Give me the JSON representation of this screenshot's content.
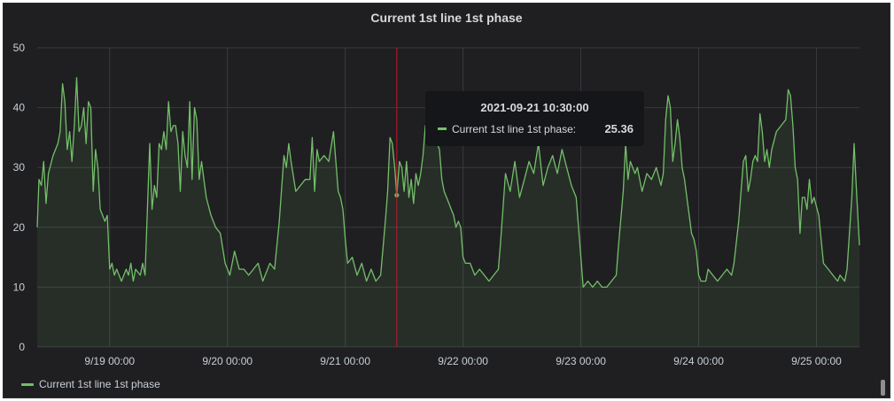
{
  "panel": {
    "title": "Current 1st line 1st phase"
  },
  "colors": {
    "background": "#1f1f21",
    "grid": "#3a3a3e",
    "series": "#73bf69",
    "crosshair": "#c4162a",
    "text": "#c7d0d9"
  },
  "tooltip": {
    "time": "2021-09-21 10:30:00",
    "label": "Current 1st line 1st phase:",
    "value": "25.36"
  },
  "legend": {
    "label": "Current 1st line 1st phase"
  },
  "chart_data": {
    "type": "area",
    "title": "Current 1st line 1st phase",
    "ylim": [
      0,
      50
    ],
    "y_ticks": [
      0,
      10,
      20,
      30,
      40,
      50
    ],
    "x_range_days": [
      18.385,
      25.365
    ],
    "x_ticks": [
      {
        "day": 19,
        "label": "9/19 00:00"
      },
      {
        "day": 20,
        "label": "9/20 00:00"
      },
      {
        "day": 21,
        "label": "9/21 00:00"
      },
      {
        "day": 22,
        "label": "9/22 00:00"
      },
      {
        "day": 23,
        "label": "9/23 00:00"
      },
      {
        "day": 24,
        "label": "9/24 00:00"
      },
      {
        "day": 25,
        "label": "9/25 00:00"
      }
    ],
    "crosshair_day": 21.4375,
    "grid": true,
    "legend_position": "bottom-left",
    "series": [
      {
        "name": "Current 1st line 1st phase",
        "points": [
          [
            18.385,
            20
          ],
          [
            18.4,
            28
          ],
          [
            18.42,
            27
          ],
          [
            18.44,
            31
          ],
          [
            18.46,
            24
          ],
          [
            18.48,
            29
          ],
          [
            18.52,
            32
          ],
          [
            18.56,
            34
          ],
          [
            18.58,
            36
          ],
          [
            18.6,
            44
          ],
          [
            18.62,
            41
          ],
          [
            18.64,
            33
          ],
          [
            18.66,
            36
          ],
          [
            18.68,
            31
          ],
          [
            18.7,
            37
          ],
          [
            18.72,
            45
          ],
          [
            18.74,
            36
          ],
          [
            18.76,
            37
          ],
          [
            18.78,
            40
          ],
          [
            18.8,
            34
          ],
          [
            18.82,
            41
          ],
          [
            18.84,
            40
          ],
          [
            18.86,
            26
          ],
          [
            18.88,
            33
          ],
          [
            18.9,
            30
          ],
          [
            18.92,
            23
          ],
          [
            18.94,
            22
          ],
          [
            18.96,
            21
          ],
          [
            18.98,
            22
          ],
          [
            19.0,
            13
          ],
          [
            19.02,
            14
          ],
          [
            19.04,
            12
          ],
          [
            19.06,
            13
          ],
          [
            19.1,
            11
          ],
          [
            19.14,
            13
          ],
          [
            19.16,
            12
          ],
          [
            19.18,
            14
          ],
          [
            19.2,
            11
          ],
          [
            19.22,
            13
          ],
          [
            19.26,
            12
          ],
          [
            19.28,
            14
          ],
          [
            19.3,
            12
          ],
          [
            19.34,
            34
          ],
          [
            19.36,
            23
          ],
          [
            19.38,
            27
          ],
          [
            19.4,
            25
          ],
          [
            19.42,
            34
          ],
          [
            19.44,
            33
          ],
          [
            19.46,
            36
          ],
          [
            19.48,
            33
          ],
          [
            19.5,
            41
          ],
          [
            19.52,
            36
          ],
          [
            19.54,
            37
          ],
          [
            19.56,
            37
          ],
          [
            19.58,
            34
          ],
          [
            19.6,
            26
          ],
          [
            19.62,
            36
          ],
          [
            19.64,
            32
          ],
          [
            19.66,
            30
          ],
          [
            19.68,
            41
          ],
          [
            19.7,
            28
          ],
          [
            19.72,
            40
          ],
          [
            19.74,
            38
          ],
          [
            19.76,
            28
          ],
          [
            19.78,
            31
          ],
          [
            19.8,
            28
          ],
          [
            19.82,
            25
          ],
          [
            19.86,
            22
          ],
          [
            19.9,
            20
          ],
          [
            19.94,
            19
          ],
          [
            19.98,
            14
          ],
          [
            20.02,
            12
          ],
          [
            20.06,
            16
          ],
          [
            20.1,
            13
          ],
          [
            20.14,
            13
          ],
          [
            20.18,
            12
          ],
          [
            20.22,
            13
          ],
          [
            20.26,
            14
          ],
          [
            20.3,
            11
          ],
          [
            20.32,
            12
          ],
          [
            20.36,
            14
          ],
          [
            20.4,
            13
          ],
          [
            20.44,
            21
          ],
          [
            20.48,
            32
          ],
          [
            20.5,
            30
          ],
          [
            20.52,
            34
          ],
          [
            20.54,
            31
          ],
          [
            20.58,
            26
          ],
          [
            20.62,
            27
          ],
          [
            20.66,
            28
          ],
          [
            20.7,
            28
          ],
          [
            20.72,
            35
          ],
          [
            20.74,
            26
          ],
          [
            20.76,
            33
          ],
          [
            20.78,
            31
          ],
          [
            20.82,
            32
          ],
          [
            20.86,
            31
          ],
          [
            20.9,
            36
          ],
          [
            20.94,
            26
          ],
          [
            20.96,
            25
          ],
          [
            20.98,
            23
          ],
          [
            21.0,
            18
          ],
          [
            21.02,
            14
          ],
          [
            21.06,
            15
          ],
          [
            21.1,
            12
          ],
          [
            21.14,
            14
          ],
          [
            21.18,
            11
          ],
          [
            21.22,
            13
          ],
          [
            21.26,
            11
          ],
          [
            21.3,
            12
          ],
          [
            21.34,
            21
          ],
          [
            21.36,
            26
          ],
          [
            21.38,
            35
          ],
          [
            21.4,
            34
          ],
          [
            21.42,
            30
          ],
          [
            21.4375,
            25.36
          ],
          [
            21.46,
            31
          ],
          [
            21.48,
            30
          ],
          [
            21.5,
            26
          ],
          [
            21.52,
            31
          ],
          [
            21.54,
            25
          ],
          [
            21.56,
            28
          ],
          [
            21.58,
            24
          ],
          [
            21.6,
            29
          ],
          [
            21.62,
            27
          ],
          [
            21.64,
            29
          ],
          [
            21.66,
            32
          ],
          [
            21.68,
            37
          ],
          [
            21.7,
            34
          ],
          [
            21.72,
            38
          ],
          [
            21.74,
            40
          ],
          [
            21.76,
            37
          ],
          [
            21.78,
            34
          ],
          [
            21.8,
            33
          ],
          [
            21.82,
            28
          ],
          [
            21.84,
            26
          ],
          [
            21.86,
            25
          ],
          [
            21.88,
            24
          ],
          [
            21.9,
            23
          ],
          [
            21.92,
            22
          ],
          [
            21.94,
            20
          ],
          [
            21.96,
            21
          ],
          [
            21.98,
            20
          ],
          [
            22.0,
            15
          ],
          [
            22.02,
            14
          ],
          [
            22.06,
            14
          ],
          [
            22.1,
            12
          ],
          [
            22.14,
            13
          ],
          [
            22.18,
            12
          ],
          [
            22.22,
            11
          ],
          [
            22.26,
            12
          ],
          [
            22.3,
            13
          ],
          [
            22.32,
            18
          ],
          [
            22.36,
            29
          ],
          [
            22.4,
            26
          ],
          [
            22.44,
            31
          ],
          [
            22.48,
            25
          ],
          [
            22.52,
            28
          ],
          [
            22.56,
            31
          ],
          [
            22.6,
            29
          ],
          [
            22.64,
            34
          ],
          [
            22.68,
            27
          ],
          [
            22.72,
            30
          ],
          [
            22.76,
            32
          ],
          [
            22.8,
            29
          ],
          [
            22.84,
            33
          ],
          [
            22.88,
            30
          ],
          [
            22.92,
            27
          ],
          [
            22.96,
            25
          ],
          [
            23.0,
            15
          ],
          [
            23.02,
            10
          ],
          [
            23.06,
            11
          ],
          [
            23.1,
            10
          ],
          [
            23.14,
            11
          ],
          [
            23.18,
            10
          ],
          [
            23.22,
            10
          ],
          [
            23.26,
            11
          ],
          [
            23.3,
            12
          ],
          [
            23.32,
            17
          ],
          [
            23.36,
            26
          ],
          [
            23.38,
            34
          ],
          [
            23.4,
            28
          ],
          [
            23.42,
            31
          ],
          [
            23.44,
            30
          ],
          [
            23.46,
            29
          ],
          [
            23.48,
            30
          ],
          [
            23.5,
            28
          ],
          [
            23.52,
            26
          ],
          [
            23.56,
            29
          ],
          [
            23.6,
            28
          ],
          [
            23.64,
            30
          ],
          [
            23.68,
            27
          ],
          [
            23.7,
            29
          ],
          [
            23.72,
            38
          ],
          [
            23.74,
            42
          ],
          [
            23.76,
            40
          ],
          [
            23.78,
            31
          ],
          [
            23.8,
            34
          ],
          [
            23.82,
            38
          ],
          [
            23.84,
            35
          ],
          [
            23.86,
            30
          ],
          [
            23.88,
            28
          ],
          [
            23.9,
            25
          ],
          [
            23.92,
            22
          ],
          [
            23.94,
            19
          ],
          [
            23.96,
            18
          ],
          [
            23.98,
            16
          ],
          [
            24.0,
            12
          ],
          [
            24.02,
            11
          ],
          [
            24.06,
            11
          ],
          [
            24.08,
            13
          ],
          [
            24.12,
            12
          ],
          [
            24.16,
            11
          ],
          [
            24.2,
            12
          ],
          [
            24.24,
            13
          ],
          [
            24.28,
            12
          ],
          [
            24.3,
            14
          ],
          [
            24.34,
            21
          ],
          [
            24.38,
            31
          ],
          [
            24.4,
            32
          ],
          [
            24.42,
            26
          ],
          [
            24.44,
            28
          ],
          [
            24.46,
            31
          ],
          [
            24.48,
            32
          ],
          [
            24.5,
            31
          ],
          [
            24.52,
            39
          ],
          [
            24.54,
            36
          ],
          [
            24.56,
            31
          ],
          [
            24.58,
            33
          ],
          [
            24.6,
            30
          ],
          [
            24.62,
            33
          ],
          [
            24.66,
            36
          ],
          [
            24.7,
            37
          ],
          [
            24.74,
            38
          ],
          [
            24.76,
            43
          ],
          [
            24.78,
            42
          ],
          [
            24.8,
            37
          ],
          [
            24.82,
            30
          ],
          [
            24.84,
            28
          ],
          [
            24.86,
            19
          ],
          [
            24.88,
            25
          ],
          [
            24.9,
            25
          ],
          [
            24.92,
            23
          ],
          [
            24.94,
            28
          ],
          [
            24.96,
            24
          ],
          [
            24.98,
            25
          ],
          [
            25.02,
            22
          ],
          [
            25.06,
            14
          ],
          [
            25.1,
            13
          ],
          [
            25.14,
            12
          ],
          [
            25.18,
            11
          ],
          [
            25.2,
            12
          ],
          [
            25.24,
            11
          ],
          [
            25.26,
            13
          ],
          [
            25.3,
            25
          ],
          [
            25.32,
            34
          ],
          [
            25.34,
            26
          ],
          [
            25.365,
            17
          ]
        ]
      }
    ]
  }
}
